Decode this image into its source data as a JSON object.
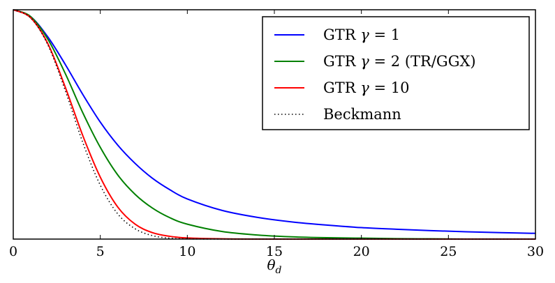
{
  "chart_data": {
    "type": "line",
    "title": "",
    "xlabel": "θ",
    "xlabel_sub": "d",
    "ylabel": "",
    "xlim": [
      0,
      30
    ],
    "ylim": [
      0,
      1
    ],
    "y_ticks_labeled": false,
    "grid": false,
    "legend_position": "top-right",
    "x_ticks": [
      "0",
      "5",
      "10",
      "15",
      "20",
      "25",
      "30"
    ],
    "x_tick_values": [
      0,
      5,
      10,
      15,
      20,
      25,
      30
    ],
    "series": [
      {
        "name": "GTR γ = 1",
        "legend_prefix": "GTR ",
        "legend_gamma": "γ",
        "legend_suffix": " = 1",
        "color": "#0000ff",
        "style": "solid",
        "x": [
          0,
          1,
          2,
          3,
          4,
          5,
          6,
          7,
          8,
          9,
          10,
          12,
          14,
          16,
          18,
          20,
          22,
          24,
          26,
          28,
          30
        ],
        "y": [
          1.0,
          0.97,
          0.88,
          0.76,
          0.63,
          0.51,
          0.41,
          0.33,
          0.265,
          0.215,
          0.175,
          0.125,
          0.095,
          0.075,
          0.061,
          0.05,
          0.043,
          0.037,
          0.032,
          0.028,
          0.025
        ]
      },
      {
        "name": "GTR γ = 2 (TR/GGX)",
        "legend_prefix": "GTR ",
        "legend_gamma": "γ",
        "legend_suffix": " = 2 (TR/GGX)",
        "color": "#008000",
        "style": "solid",
        "x": [
          0,
          1,
          2,
          3,
          4,
          5,
          6,
          7,
          8,
          9,
          10,
          12,
          14,
          16,
          18,
          20,
          22,
          24,
          26,
          28,
          30
        ],
        "y": [
          1.0,
          0.97,
          0.87,
          0.72,
          0.55,
          0.4,
          0.28,
          0.195,
          0.135,
          0.093,
          0.065,
          0.033,
          0.018,
          0.01,
          0.006,
          0.004,
          0.002,
          0.001,
          0.0,
          0.0,
          0.0
        ]
      },
      {
        "name": "GTR γ = 10",
        "legend_prefix": "GTR ",
        "legend_gamma": "γ",
        "legend_suffix": " = 10",
        "color": "#ff0000",
        "style": "solid",
        "x": [
          0,
          1,
          2,
          3,
          4,
          5,
          6,
          7,
          8,
          9,
          10,
          12,
          14,
          16,
          18,
          20,
          22,
          24,
          26,
          28,
          30
        ],
        "y": [
          1.0,
          0.965,
          0.85,
          0.66,
          0.45,
          0.27,
          0.14,
          0.065,
          0.028,
          0.012,
          0.005,
          0.001,
          0.0,
          0.0,
          0.0,
          0.0,
          0.0,
          0.0,
          0.0,
          0.0,
          0.0
        ]
      },
      {
        "name": "Beckmann",
        "legend_prefix": "Beckmann",
        "legend_gamma": "",
        "legend_suffix": "",
        "color": "#000000",
        "style": "dotted",
        "x": [
          0,
          1,
          2,
          3,
          4,
          5,
          6,
          7,
          8,
          9,
          10,
          12,
          14,
          16,
          18,
          20,
          22,
          24,
          26,
          28,
          30
        ],
        "y": [
          1.0,
          0.965,
          0.845,
          0.645,
          0.42,
          0.235,
          0.11,
          0.045,
          0.015,
          0.004,
          0.001,
          0.0,
          0.0,
          0.0,
          0.0,
          0.0,
          0.0,
          0.0,
          0.0,
          0.0,
          0.0
        ]
      }
    ]
  }
}
